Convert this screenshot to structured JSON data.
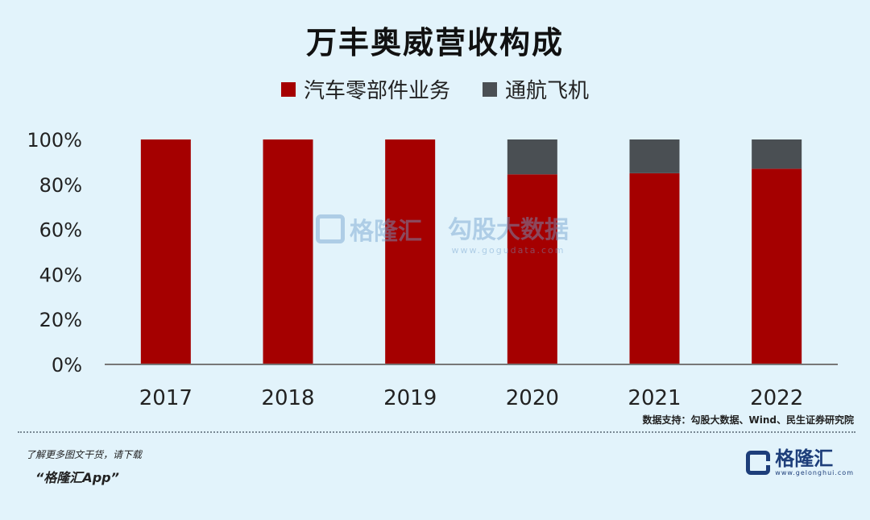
{
  "chart_data": {
    "type": "bar",
    "stacked": true,
    "title": "万丰奥威营收构成",
    "categories": [
      "2017",
      "2018",
      "2019",
      "2020",
      "2021",
      "2022"
    ],
    "series": [
      {
        "name": "汽车零部件业务",
        "color": "#a50000",
        "values": [
          100,
          100,
          100,
          84.5,
          85,
          87
        ]
      },
      {
        "name": "通航飞机",
        "color": "#4a4f53",
        "values": [
          0,
          0,
          0,
          15.5,
          15,
          13
        ]
      }
    ],
    "y_ticks": [
      "100%",
      "80%",
      "60%",
      "40%",
      "20%",
      "0%"
    ],
    "ylim": [
      0,
      100
    ],
    "grid": false,
    "legend_position": "top-center"
  },
  "watermark": {
    "left_text": "格隆汇",
    "right_text": "勾股大数据",
    "right_sub": "www.gogudata.com"
  },
  "source_note": "数据支持：勾股大数据、Wind、民生证券研究院",
  "footer": {
    "line1": "了解更多图文干货，请下载",
    "line2": "“格隆汇App”"
  },
  "brand": {
    "name": "格隆汇",
    "url": "www.gelonghui.com"
  }
}
